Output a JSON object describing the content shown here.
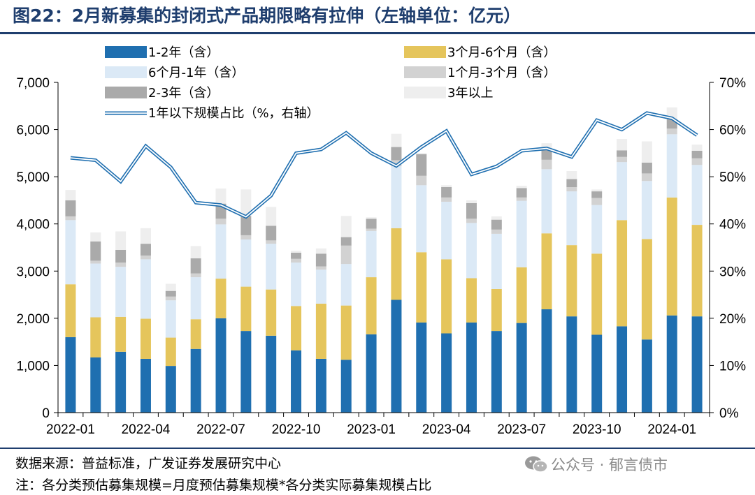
{
  "title": "图22：2月新募集的封闭式产品期限略有拉伸（左轴单位：亿元）",
  "source_text": "数据来源：普益标准，广发证券发展研究中心",
  "note_text": "注：各分类预估募集规模=月度预估募集规模*各分类实际募集规模占比",
  "watermark": "公众号 · 郁言债市",
  "colors": {
    "heading": "#1f3e6e",
    "s_1_2y": "#1f6fb0",
    "s_3_6m": "#e5c55c",
    "s_6m_1y": "#dbe9f6",
    "s_1_3m": "#d2d2d2",
    "s_2_3y": "#aaaaaa",
    "s_3y_plus": "#eeeeee",
    "line": "#1f6fb0"
  },
  "chart_data": {
    "type": "bar",
    "stacked": true,
    "categories": [
      "2022-01",
      "2022-02",
      "2022-03",
      "2022-04",
      "2022-05",
      "2022-06",
      "2022-07",
      "2022-08",
      "2022-09",
      "2022-10",
      "2022-11",
      "2022-12",
      "2023-01",
      "2023-02",
      "2023-03",
      "2023-04",
      "2023-05",
      "2023-06",
      "2023-07",
      "2023-08",
      "2023-09",
      "2023-10",
      "2023-11",
      "2023-12",
      "2024-01",
      "2024-02"
    ],
    "x_tick_labels": [
      "2022-01",
      "2022-04",
      "2022-07",
      "2022-10",
      "2023-01",
      "2023-04",
      "2023-07",
      "2023-10",
      "2024-01"
    ],
    "y_left": {
      "min": 0,
      "max": 7000,
      "ticks": [
        "0",
        "1,000",
        "2,000",
        "3,000",
        "4,000",
        "5,000",
        "6,000",
        "7,000"
      ]
    },
    "y_right": {
      "min": 0,
      "max": 70,
      "ticks": [
        "0%",
        "10%",
        "20%",
        "30%",
        "40%",
        "50%",
        "60%",
        "70%"
      ]
    },
    "legend_position": "top",
    "series": [
      {
        "name": "1-2年（含）",
        "color_key": "s_1_2y",
        "values": [
          1600,
          1170,
          1290,
          1140,
          990,
          1350,
          2000,
          1730,
          1630,
          1320,
          1140,
          1120,
          1660,
          2390,
          1910,
          1680,
          1910,
          1730,
          1900,
          2190,
          2040,
          1650,
          1830,
          1550,
          2060,
          2040
        ]
      },
      {
        "name": "3个月-6个月（含）",
        "color_key": "s_3_6m",
        "values": [
          1120,
          850,
          740,
          850,
          600,
          630,
          840,
          940,
          980,
          940,
          1170,
          1150,
          1210,
          1520,
          1490,
          1570,
          940,
          890,
          1180,
          1610,
          1510,
          1720,
          2250,
          2130,
          2500,
          1940
        ]
      },
      {
        "name": "6个月-1年（含）",
        "color_key": "s_6m_1y",
        "values": [
          1360,
          1140,
          1060,
          1260,
          790,
          890,
          1150,
          1000,
          970,
          920,
          720,
          880,
          980,
          1310,
          1420,
          1220,
          1170,
          1170,
          1410,
          1360,
          1140,
          1030,
          1230,
          1230,
          1340,
          1270
        ]
      },
      {
        "name": "1个月-3个月（含）",
        "color_key": "s_1_3m",
        "values": [
          80,
          60,
          90,
          80,
          80,
          80,
          120,
          90,
          70,
          80,
          70,
          390,
          50,
          130,
          200,
          90,
          90,
          90,
          70,
          200,
          90,
          150,
          110,
          160,
          120,
          140
        ]
      },
      {
        "name": "2-3年（含）",
        "color_key": "s_2_3y",
        "values": [
          340,
          410,
          270,
          250,
          120,
          320,
          320,
          410,
          310,
          130,
          270,
          180,
          210,
          280,
          460,
          220,
          330,
          210,
          200,
          230,
          170,
          140,
          140,
          230,
          200,
          160
        ]
      },
      {
        "name": "3年以上",
        "color_key": "s_3y_plus",
        "values": [
          220,
          190,
          390,
          330,
          150,
          260,
          320,
          560,
          400,
          40,
          110,
          450,
          30,
          280,
          20,
          40,
          60,
          70,
          50,
          120,
          170,
          40,
          240,
          450,
          250,
          130
        ]
      }
    ],
    "line_series": {
      "name": "1年以下规模占比（%，右轴）",
      "axis": "right",
      "color_key": "line",
      "values": [
        54,
        53.5,
        49,
        56.5,
        52,
        44.5,
        44,
        41.5,
        46,
        55,
        55.8,
        59.3,
        55,
        52.3,
        56.3,
        59.7,
        50.5,
        52.2,
        55.5,
        56,
        54.2,
        62,
        60,
        63.5,
        62.4,
        58.8
      ]
    }
  }
}
